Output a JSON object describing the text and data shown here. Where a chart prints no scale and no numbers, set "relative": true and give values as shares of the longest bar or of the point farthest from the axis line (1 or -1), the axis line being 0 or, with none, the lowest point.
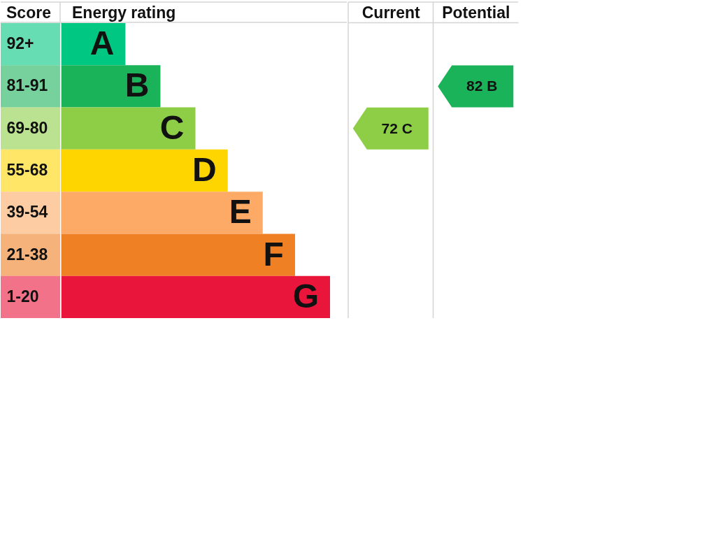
{
  "chart_data": [
    {
      "type": "bar",
      "orientation": "horizontal",
      "relative": true,
      "ylabel": "Score",
      "xlabel": "Energy rating",
      "categories": [
        "92+",
        "81-91",
        "69-80",
        "55-68",
        "39-54",
        "21-38",
        "1-20"
      ],
      "values": [
        0.24,
        0.37,
        0.5,
        0.62,
        0.75,
        0.87,
        1
      ],
      "colors": [
        "#00c781",
        "#1bb35a",
        "#8dce46",
        "#ffd500",
        "#fcaa65",
        "#ef8023",
        "#e9153b"
      ],
      "annotations": [
        {
          "text": "A",
          "x": 0.24,
          "y": "92+"
        },
        {
          "text": "B",
          "x": 0.37,
          "y": "81-91"
        },
        {
          "text": "C",
          "x": 0.5,
          "y": "69-80"
        },
        {
          "text": "D",
          "x": 0.62,
          "y": "55-68"
        },
        {
          "text": "E",
          "x": 0.75,
          "y": "39-54"
        },
        {
          "text": "F",
          "x": 0.87,
          "y": "21-38"
        },
        {
          "text": "G",
          "x": 1,
          "y": "1-20"
        }
      ]
    },
    {
      "type": "heatmap",
      "tick_labels": "x",
      "categories": [
        "Current",
        "Potential"
      ],
      "y_categories": [
        "92+",
        "81-91",
        "69-80",
        "55-68",
        "39-54",
        "21-38",
        "1-20"
      ],
      "cells": [
        [
          null,
          null
        ],
        [
          null,
          82
        ],
        [
          72,
          null
        ],
        [
          null,
          null
        ],
        [
          null,
          null
        ],
        [
          null,
          null
        ],
        [
          null,
          null
        ]
      ],
      "cell_labels": [
        [
          null,
          null
        ],
        [
          null,
          "82 B"
        ],
        [
          "72 C",
          null
        ],
        [
          null,
          null
        ],
        [
          null,
          null
        ],
        [
          null,
          null
        ],
        [
          null,
          null
        ]
      ],
      "colors": [
        [
          null,
          null
        ],
        [
          null,
          "#1bb35a"
        ],
        [
          "#8dce46",
          null
        ],
        [
          null,
          null
        ],
        [
          null,
          null
        ],
        [
          null,
          null
        ],
        [
          null,
          null
        ]
      ]
    }
  ]
}
